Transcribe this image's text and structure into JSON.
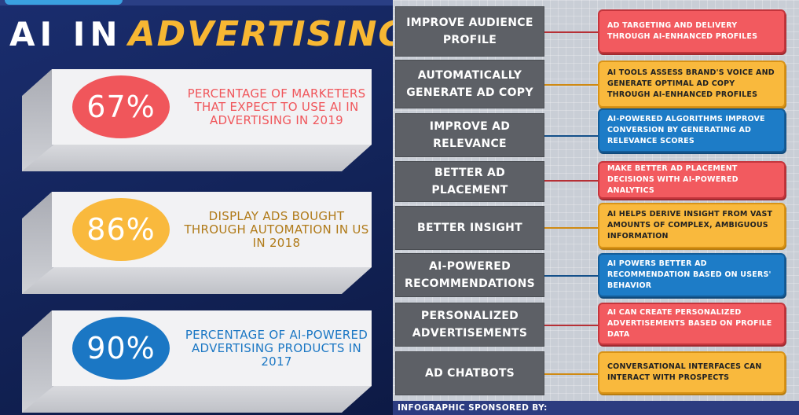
{
  "title": {
    "prefix": "AI IN",
    "highlight": "ADVERTISING"
  },
  "stats": [
    {
      "value": "67%",
      "label": "PERCENTAGE OF MARKETERS THAT EXPECT TO USE AI IN ADVERTISING IN 2019",
      "circle_color": "#f0565b",
      "text_color": "#f0565b"
    },
    {
      "value": "86%",
      "label": "DISPLAY ADS BOUGHT THROUGH AUTOMATION IN US IN 2018",
      "circle_color": "#f9b93d",
      "text_color": "#b07a18"
    },
    {
      "value": "90%",
      "label": "PERCENTAGE OF AI-POWERED ADVERTISING PRODUCTS IN 2017",
      "circle_color": "#1b77c4",
      "text_color": "#1b77c4"
    }
  ],
  "benefits": [
    {
      "label": "IMPROVE AUDIENCE PROFILE",
      "desc": "AD TARGETING AND DELIVERY THROUGH AI-ENHANCED PROFILES",
      "color": "red"
    },
    {
      "label": "AUTOMATICALLY GENERATE AD COPY",
      "desc": "AI TOOLS ASSESS BRAND'S VOICE AND GENERATE OPTIMAL AD COPY THROUGH AI-ENHANCED PROFILES",
      "color": "orange"
    },
    {
      "label": "IMPROVE AD RELEVANCE",
      "desc": "AI-POWERED ALGORITHMS IMPROVE CONVERSION BY GENERATING AD RELEVANCE SCORES",
      "color": "blue"
    },
    {
      "label": "BETTER AD PLACEMENT",
      "desc": "MAKE BETTER AD PLACEMENT DECISIONS WITH AI-POWERED ANALYTICS",
      "color": "red"
    },
    {
      "label": "BETTER INSIGHT",
      "desc": "AI HELPS DERIVE INSIGHT FROM VAST AMOUNTS OF COMPLEX, AMBIGUOUS INFORMATION",
      "color": "orange"
    },
    {
      "label": "AI-POWERED RECOMMENDATIONS",
      "desc": "AI POWERS BETTER AD RECOMMENDATION BASED ON USERS' BEHAVIOR",
      "color": "blue"
    },
    {
      "label": "PERSONALIZED ADVERTISEMENTS",
      "desc": "AI CAN CREATE PERSONALIZED ADVERTISEMENTS BASED ON PROFILE DATA",
      "color": "red"
    },
    {
      "label": "AD CHATBOTS",
      "desc": "CONVERSATIONAL INTERFACES CAN INTERACT WITH PROSPECTS",
      "color": "orange"
    }
  ],
  "footer": {
    "text": "INFOGRAPHIC SPONSORED BY:"
  }
}
